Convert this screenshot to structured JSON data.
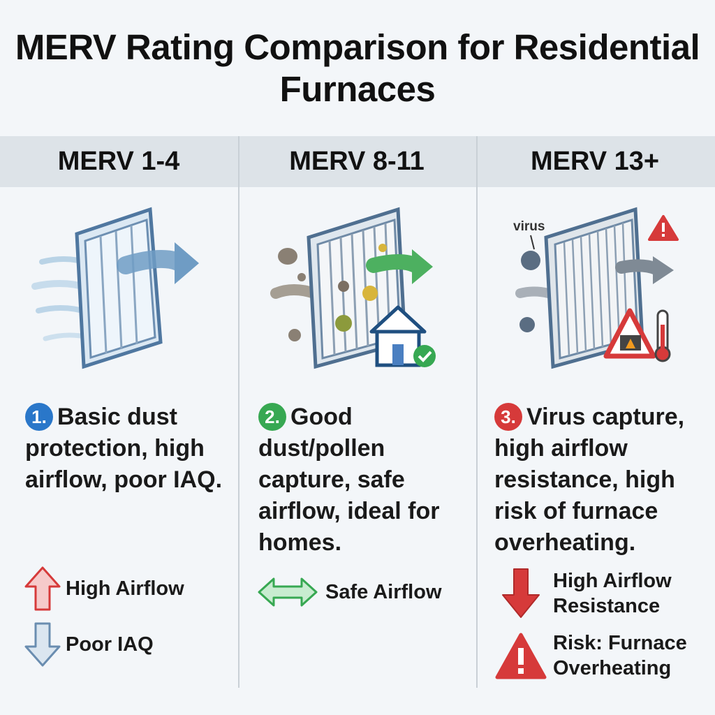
{
  "title": "MERV Rating Comparison for Residential Furnaces",
  "columns": [
    {
      "header": "MERV 1-4",
      "badge": "1.",
      "description": "Basic dust protection, high airflow, poor IAQ.",
      "indicators": [
        "High Airflow",
        "Poor IAQ"
      ]
    },
    {
      "header": "MERV 8-11",
      "badge": "2.",
      "description": "Good dust/pollen capture, safe airflow, ideal for homes.",
      "indicators": [
        "Safe Airflow"
      ]
    },
    {
      "header": "MERV 13+",
      "badge": "3.",
      "description": "Virus capture, high airflow resistance, high risk of furnace overheating.",
      "illustration_label": "virus",
      "indicators": [
        "High Airflow Resistance",
        "Risk: Furnace Overheating"
      ]
    }
  ],
  "colors": {
    "blue": "#2a77c9",
    "green": "#37a852",
    "red": "#d63a3a"
  }
}
